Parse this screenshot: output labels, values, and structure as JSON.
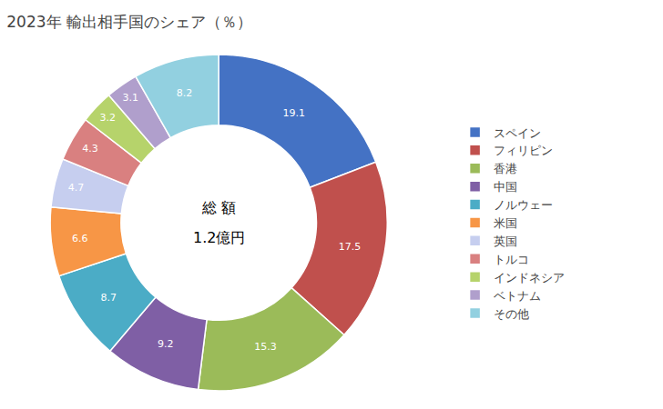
{
  "chart_data": {
    "type": "donut",
    "title": "2023年 輸出相手国のシェア（％）",
    "categories": [
      "スペイン",
      "フィリピン",
      "香港",
      "中国",
      "ノルウェー",
      "米国",
      "英国",
      "トルコ",
      "インドネシア",
      "ベトナム",
      "その他"
    ],
    "values": [
      19.1,
      17.5,
      15.3,
      9.2,
      8.7,
      6.6,
      4.7,
      4.3,
      3.2,
      3.1,
      8.2
    ],
    "colors": [
      "#4472C4",
      "#C0504D",
      "#9BBB59",
      "#7F5FA5",
      "#4BACC6",
      "#F79646",
      "#C6CEEF",
      "#D98080",
      "#B6D36B",
      "#B09FCC",
      "#92D0E0"
    ],
    "annotations": [
      "総 額",
      "1.2億円"
    ],
    "data_labels": true,
    "legend": "right"
  }
}
